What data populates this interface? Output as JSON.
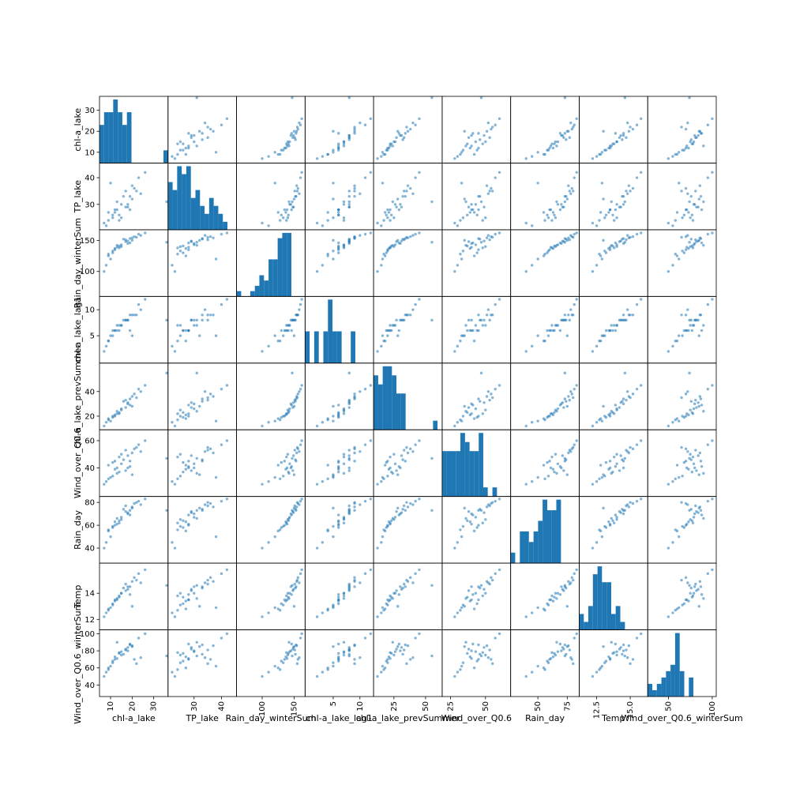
{
  "chart_data": {
    "type": "scatter",
    "matrix_type": "scatter-matrix",
    "diagonal": "histogram",
    "colors": {
      "marks": "#1f77b4",
      "frame": "#000000",
      "background": "#ffffff"
    },
    "variables": [
      {
        "name": "chl-a_lake",
        "yticks": [
          "10",
          "20",
          "30"
        ],
        "ytick_values": [
          10,
          20,
          30
        ],
        "xticks": [
          "10",
          "20",
          "30"
        ],
        "xtick_values": [
          10,
          20,
          30
        ],
        "range": [
          5.5,
          36
        ],
        "hist": {
          "bin_edges": [
            5.5,
            7.6,
            9.7,
            11.8,
            13.9,
            16.0,
            18.1,
            20.2,
            22.3,
            24.4,
            26.5,
            28.6,
            30.7,
            32.8,
            34.9,
            37
          ],
          "counts": [
            3,
            4,
            4,
            5,
            4,
            3,
            4,
            0,
            0,
            0,
            0,
            0,
            0,
            0,
            1
          ]
        }
      },
      {
        "name": "TP_lake",
        "yticks": [
          "30",
          "40"
        ],
        "ytick_values": [
          30,
          40
        ],
        "xticks": [
          "30",
          "40"
        ],
        "xtick_values": [
          30,
          40
        ],
        "range": [
          21,
          45
        ],
        "hist": {
          "bin_edges": [
            21,
            22.6,
            24.2,
            25.8,
            27.4,
            29.0,
            30.6,
            32.2,
            33.8,
            35.4,
            37.0,
            38.6,
            40.2,
            41.8,
            43.4,
            45
          ],
          "counts": [
            6,
            5,
            8,
            7,
            8,
            4,
            5,
            3,
            2,
            4,
            3,
            2,
            1,
            0,
            0
          ]
        }
      },
      {
        "name": "Rain_day_winterSum",
        "yticks": [
          "100",
          "150"
        ],
        "ytick_values": [
          100,
          150
        ],
        "xticks": [
          "100",
          "150"
        ],
        "xtick_values": [
          100,
          150
        ],
        "range": [
          62,
          165
        ],
        "hist": {
          "bin_edges": [
            62,
            68.9,
            75.7,
            82.6,
            89.5,
            96.3,
            103.2,
            110.1,
            116.9,
            123.8,
            130.7,
            137.5,
            144.4,
            151.3,
            158.1,
            165
          ],
          "counts": [
            1,
            0,
            0,
            1,
            2,
            4,
            3,
            7,
            7,
            11,
            12,
            12,
            0,
            0,
            0
          ]
        }
      },
      {
        "name": "chl-a_lake_lag1",
        "yticks": [
          "5",
          "10"
        ],
        "ytick_values": [
          5,
          10
        ],
        "xticks": [
          "5",
          "10"
        ],
        "xtick_values": [
          5,
          10
        ],
        "range": [
          0,
          12.3
        ],
        "hist": {
          "bin_edges": [
            0,
            0.82,
            1.64,
            2.46,
            3.28,
            4.1,
            4.92,
            5.74,
            6.56,
            7.38,
            8.2,
            9.02,
            9.84,
            10.66,
            11.48,
            12.3
          ],
          "counts": [
            2,
            0,
            2,
            0,
            2,
            4,
            2,
            2,
            0,
            0,
            2,
            0,
            0,
            0,
            0
          ]
        }
      },
      {
        "name": "chl-a_lake_prevSummer",
        "yticks": [
          "20",
          "40"
        ],
        "ytick_values": [
          20,
          40
        ],
        "xticks": [
          "25",
          "50"
        ],
        "xtick_values": [
          25,
          50
        ],
        "range": [
          10,
          62
        ],
        "hist": {
          "bin_edges": [
            10,
            13.5,
            16.9,
            20.4,
            23.9,
            27.3,
            30.8,
            34.3,
            37.7,
            41.2,
            44.7,
            48.1,
            51.6,
            55.1,
            58.5,
            62
          ],
          "counts": [
            6,
            5,
            7,
            7,
            6,
            4,
            4,
            0,
            0,
            0,
            0,
            0,
            0,
            1,
            0
          ]
        }
      },
      {
        "name": "Wind_over_Q0.6",
        "yticks": [
          "40",
          "60"
        ],
        "ytick_values": [
          40,
          60
        ],
        "xticks": [
          "25",
          "50"
        ],
        "xtick_values": [
          25,
          50
        ],
        "range": [
          20,
          67
        ],
        "hist": {
          "bin_edges": [
            20,
            23.1,
            26.3,
            29.4,
            32.5,
            35.7,
            38.8,
            41.9,
            45.1,
            48.2,
            51.3,
            54.5,
            57.6,
            60.7,
            63.9,
            67
          ],
          "counts": [
            5,
            5,
            5,
            5,
            7,
            6,
            5,
            5,
            7,
            1,
            0,
            1,
            0,
            0,
            0
          ]
        }
      },
      {
        "name": "Rain_day",
        "yticks": [
          "40",
          "60",
          "80"
        ],
        "ytick_values": [
          40,
          60,
          80
        ],
        "xticks": [
          "50",
          "75"
        ],
        "xtick_values": [
          50,
          75
        ],
        "range": [
          28,
          84
        ],
        "hist": {
          "bin_edges": [
            28,
            31.7,
            35.5,
            39.2,
            42.9,
            46.7,
            50.4,
            54.1,
            57.9,
            61.6,
            65.3,
            69.1,
            72.8,
            76.5,
            80.3,
            84
          ],
          "counts": [
            1,
            0,
            3,
            3,
            2,
            3,
            4,
            6,
            5,
            5,
            6,
            0,
            0,
            0,
            0
          ]
        }
      },
      {
        "name": "Temp",
        "yticks": [
          "12",
          "14"
        ],
        "ytick_values": [
          12,
          14
        ],
        "xticks": [
          "12.5",
          "15.0"
        ],
        "xtick_values": [
          12.5,
          15.0
        ],
        "range": [
          11.3,
          16.2
        ],
        "hist": {
          "bin_edges": [
            11.3,
            11.63,
            11.95,
            12.28,
            12.61,
            12.93,
            13.26,
            13.59,
            13.91,
            14.24,
            14.57,
            14.89,
            15.22,
            15.55,
            15.87,
            16.2
          ],
          "counts": [
            2,
            1,
            3,
            7,
            8,
            6,
            6,
            2,
            3,
            1,
            0,
            0,
            0,
            0,
            0
          ]
        }
      },
      {
        "name": "Wind_over_Q0.6_winterSum",
        "yticks": [
          "40",
          "60",
          "80",
          "100"
        ],
        "ytick_values": [
          40,
          60,
          80,
          100
        ],
        "xticks": [
          "50",
          "100"
        ],
        "xtick_values": [
          50,
          100
        ],
        "range": [
          28,
          103
        ],
        "hist": {
          "bin_edges": [
            28,
            33,
            38,
            43,
            48,
            53,
            58,
            63,
            68,
            73,
            78,
            83,
            88,
            93,
            98,
            103
          ],
          "counts": [
            2,
            1,
            2,
            3,
            4,
            5,
            10,
            4,
            0,
            3,
            0,
            0,
            0,
            0,
            0
          ]
        }
      }
    ],
    "observations": [
      [
        12,
        28,
        135,
        6,
        20,
        45,
        60,
        13.5,
        70
      ],
      [
        15,
        25,
        140,
        7,
        25,
        50,
        65,
        14.0,
        75
      ],
      [
        18,
        30,
        145,
        8,
        30,
        40,
        70,
        14.5,
        80
      ],
      [
        20,
        32,
        150,
        5,
        28,
        35,
        75,
        13.0,
        85
      ],
      [
        22,
        35,
        155,
        9,
        35,
        55,
        80,
        15.0,
        65
      ],
      [
        9,
        27,
        125,
        4,
        18,
        42,
        55,
        12.8,
        60
      ],
      [
        14,
        24,
        138,
        7,
        22,
        48,
        62,
        13.8,
        78
      ],
      [
        17,
        29,
        148,
        8,
        27,
        38,
        72,
        14.2,
        82
      ],
      [
        24,
        34,
        158,
        10,
        40,
        52,
        78,
        14.8,
        72
      ],
      [
        11,
        26,
        130,
        6,
        19,
        44,
        58,
        13.2,
        68
      ],
      [
        13,
        31,
        142,
        7,
        24,
        36,
        66,
        13.6,
        90
      ],
      [
        16,
        33,
        152,
        8,
        32,
        46,
        74,
        14.4,
        76
      ],
      [
        19,
        28,
        146,
        6,
        29,
        41,
        69,
        13.9,
        88
      ],
      [
        21,
        36,
        156,
        9,
        38,
        54,
        79,
        15.2,
        70
      ],
      [
        8,
        22,
        110,
        3,
        15,
        30,
        45,
        12.5,
        55
      ],
      [
        10,
        38,
        120,
        5,
        16,
        33,
        50,
        12.9,
        62
      ],
      [
        23,
        40,
        160,
        11,
        42,
        57,
        81,
        15.5,
        95
      ],
      [
        7,
        23,
        100,
        2,
        12,
        28,
        40,
        12.2,
        50
      ],
      [
        26,
        42,
        162,
        12,
        45,
        60,
        83,
        15.8,
        100
      ],
      [
        12,
        27,
        137,
        6,
        21,
        39,
        63,
        13.4,
        73
      ],
      [
        15,
        30,
        143,
        7,
        26,
        43,
        67,
        14.0,
        79
      ],
      [
        18,
        29,
        149,
        8,
        31,
        49,
        71,
        14.3,
        84
      ],
      [
        14,
        26,
        141,
        6,
        23,
        37,
        64,
        13.7,
        77
      ],
      [
        20,
        37,
        154,
        9,
        36,
        51,
        76,
        14.9,
        86
      ],
      [
        11,
        25,
        133,
        5,
        20,
        34,
        59,
        13.1,
        66
      ],
      [
        36,
        31,
        147,
        8,
        55,
        47,
        73,
        14.6,
        74
      ],
      [
        9,
        24,
        128,
        4,
        17,
        32,
        56,
        12.7,
        58
      ],
      [
        17,
        35,
        151,
        8,
        33,
        53,
        77,
        14.7,
        81
      ],
      [
        13,
        28,
        139,
        6,
        22,
        40,
        61,
        13.5,
        71
      ],
      [
        19,
        33,
        153,
        9,
        34,
        45,
        73,
        14.5,
        87
      ]
    ]
  }
}
